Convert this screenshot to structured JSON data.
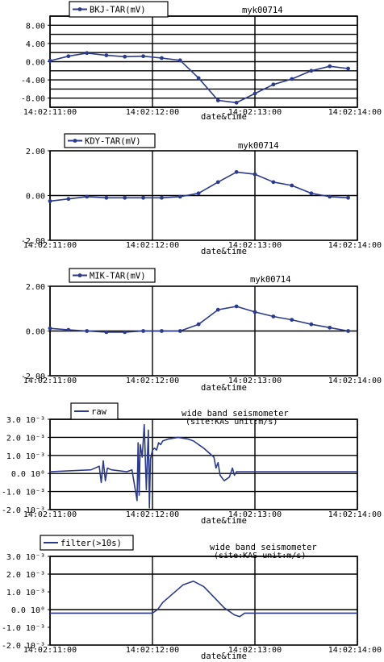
{
  "colors": {
    "series": "#2b3a8c",
    "axis": "#000000",
    "background": "#ffffff"
  },
  "chart_data": [
    {
      "type": "line",
      "legend": "BKJ-TAR(mV)",
      "station": "myk00714",
      "xlabel": "date&time",
      "xtick_labels": [
        "14:02:11:00",
        "14:02:12:00",
        "14:02:13:00",
        "14:02:14:00"
      ],
      "ytick_labels": [
        "8.00",
        "4.00",
        "0.00",
        "-4.00",
        "-8.00"
      ],
      "yticks": [
        8,
        4,
        0,
        -4,
        -8
      ],
      "ylim": [
        -10,
        10
      ],
      "xlim": [
        0,
        3
      ],
      "grid_lines": [
        10,
        8,
        6,
        4,
        2,
        0,
        -2,
        -4,
        -6,
        -8,
        -10
      ],
      "marker": true,
      "x": [
        0,
        0.18,
        0.36,
        0.55,
        0.73,
        0.91,
        1.09,
        1.27,
        1.45,
        1.64,
        1.82,
        2.0,
        2.18,
        2.36,
        2.55,
        2.73,
        2.91
      ],
      "y": [
        0.2,
        1.2,
        1.9,
        1.4,
        1.1,
        1.2,
        0.8,
        0.3,
        -3.6,
        -8.5,
        -9.0,
        -7.0,
        -5.0,
        -3.8,
        -2.0,
        -1.0,
        -1.5
      ]
    },
    {
      "type": "line",
      "legend": "KDY-TAR(mV)",
      "station": "myk00714",
      "xlabel": "date&time",
      "xtick_labels": [
        "14:02:11:00",
        "14:02:12:00",
        "14:02:13:00",
        "14:02:14:00"
      ],
      "ytick_labels": [
        "2.00",
        "0.00",
        "-2.00"
      ],
      "yticks": [
        2,
        0,
        -2
      ],
      "ylim": [
        -2,
        2
      ],
      "xlim": [
        0,
        3
      ],
      "grid_lines": [
        0
      ],
      "marker": true,
      "x": [
        0,
        0.18,
        0.36,
        0.55,
        0.73,
        0.91,
        1.09,
        1.27,
        1.45,
        1.64,
        1.82,
        2.0,
        2.18,
        2.36,
        2.55,
        2.73,
        2.91
      ],
      "y": [
        -0.25,
        -0.15,
        -0.05,
        -0.1,
        -0.1,
        -0.1,
        -0.1,
        -0.05,
        0.1,
        0.6,
        1.05,
        0.95,
        0.6,
        0.45,
        0.1,
        -0.05,
        -0.1
      ]
    },
    {
      "type": "line",
      "legend": "MIK-TAR(mV)",
      "station": "myk00714",
      "xlabel": "date&time",
      "xtick_labels": [
        "14:02:11:00",
        "14:02:12:00",
        "14:02:13:00",
        "14:02:14:00"
      ],
      "ytick_labels": [
        "2.00",
        "0.00",
        "-2.00"
      ],
      "yticks": [
        2,
        0,
        -2
      ],
      "ylim": [
        -2,
        2
      ],
      "xlim": [
        0,
        3
      ],
      "grid_lines": [
        0
      ],
      "marker": true,
      "x": [
        0,
        0.18,
        0.36,
        0.55,
        0.73,
        0.91,
        1.09,
        1.27,
        1.45,
        1.64,
        1.82,
        2.0,
        2.18,
        2.36,
        2.55,
        2.73,
        2.91
      ],
      "y": [
        0.12,
        0.05,
        0.0,
        -0.05,
        -0.05,
        0.0,
        0.0,
        0.0,
        0.3,
        0.95,
        1.1,
        0.85,
        0.65,
        0.5,
        0.3,
        0.15,
        0.0
      ]
    },
    {
      "type": "line",
      "legend": "raw",
      "title": "wide band seismometer",
      "subtitle": "(site:KAS unit:m/s)",
      "xlabel": "date&time",
      "xtick_labels": [
        "14:02:11:00",
        "14:02:12:00",
        "14:02:13:00",
        "14:02:14:00"
      ],
      "ytick_labels": [
        "3.0 10⁻³",
        "2.0 10⁻³",
        "1.0 10⁻³",
        "0.0 10⁰",
        "-1.0 10⁻³",
        "-2.0 10⁻³"
      ],
      "yticks": [
        0.003,
        0.002,
        0.001,
        0,
        -0.001,
        -0.002
      ],
      "ylim": [
        -0.002,
        0.003
      ],
      "xlim": [
        0,
        3
      ],
      "grid_lines": [
        0.003,
        0.002,
        0.001,
        0,
        -0.001,
        -0.002
      ],
      "marker": false,
      "x": [
        0,
        0.4,
        0.48,
        0.5,
        0.52,
        0.54,
        0.56,
        0.6,
        0.75,
        0.8,
        0.85,
        0.86,
        0.87,
        0.88,
        0.9,
        0.92,
        0.94,
        0.96,
        0.97,
        0.98,
        1.0,
        1.02,
        1.04,
        1.06,
        1.08,
        1.1,
        1.15,
        1.25,
        1.35,
        1.4,
        1.5,
        1.6,
        1.62,
        1.64,
        1.66,
        1.7,
        1.75,
        1.78,
        1.8,
        1.82,
        1.9,
        2.2,
        2.5,
        2.8,
        3.0
      ],
      "y": [
        0.0001,
        0.0002,
        0.0004,
        -0.0005,
        0.0007,
        -0.0004,
        0.0003,
        0.0002,
        0.0001,
        0.0002,
        -0.0015,
        0.0017,
        -0.0012,
        0.0016,
        0.0009,
        0.0027,
        -0.0009,
        0.0024,
        -0.0019,
        0.0008,
        0.0013,
        0.0014,
        0.0013,
        0.0017,
        0.0016,
        0.0018,
        0.0019,
        0.002,
        0.0019,
        0.0018,
        0.0014,
        0.0009,
        0.0003,
        0.0006,
        -0.0001,
        -0.0004,
        -0.0002,
        0.0003,
        -0.0001,
        0.0001,
        0.0001,
        0.0001,
        0.0001,
        0.0001,
        0.0001
      ]
    },
    {
      "type": "line",
      "legend": "filter(>10s)",
      "title": "wide band seismometer",
      "subtitle": "(site:KAS unit:m/s)",
      "xlabel": "date&time",
      "xtick_labels": [
        "14:02:11:00",
        "14:02:12:00",
        "14:02:13:00",
        "14:02:14:00"
      ],
      "ytick_labels": [
        "3.0 10⁻³",
        "2.0 10⁻³",
        "1.0 10⁻³",
        "0.0 10⁰",
        "-1.0 10⁻³",
        "-2.0 10⁻³"
      ],
      "yticks": [
        0.003,
        0.002,
        0.001,
        0,
        -0.001,
        -0.002
      ],
      "ylim": [
        -0.002,
        0.003
      ],
      "xlim": [
        0,
        3
      ],
      "grid_lines": [
        0.003,
        0.002,
        0
      ],
      "marker": false,
      "x": [
        0,
        0.5,
        1.0,
        1.05,
        1.1,
        1.2,
        1.3,
        1.4,
        1.5,
        1.6,
        1.7,
        1.8,
        1.85,
        1.9,
        2.0,
        2.5,
        3.0
      ],
      "y": [
        -0.0002,
        -0.0002,
        -0.0002,
        0.0,
        0.0004,
        0.0009,
        0.0014,
        0.0016,
        0.0013,
        0.0007,
        0.0001,
        -0.0003,
        -0.0004,
        -0.0002,
        -0.0002,
        -0.0002,
        -0.0002
      ]
    }
  ]
}
